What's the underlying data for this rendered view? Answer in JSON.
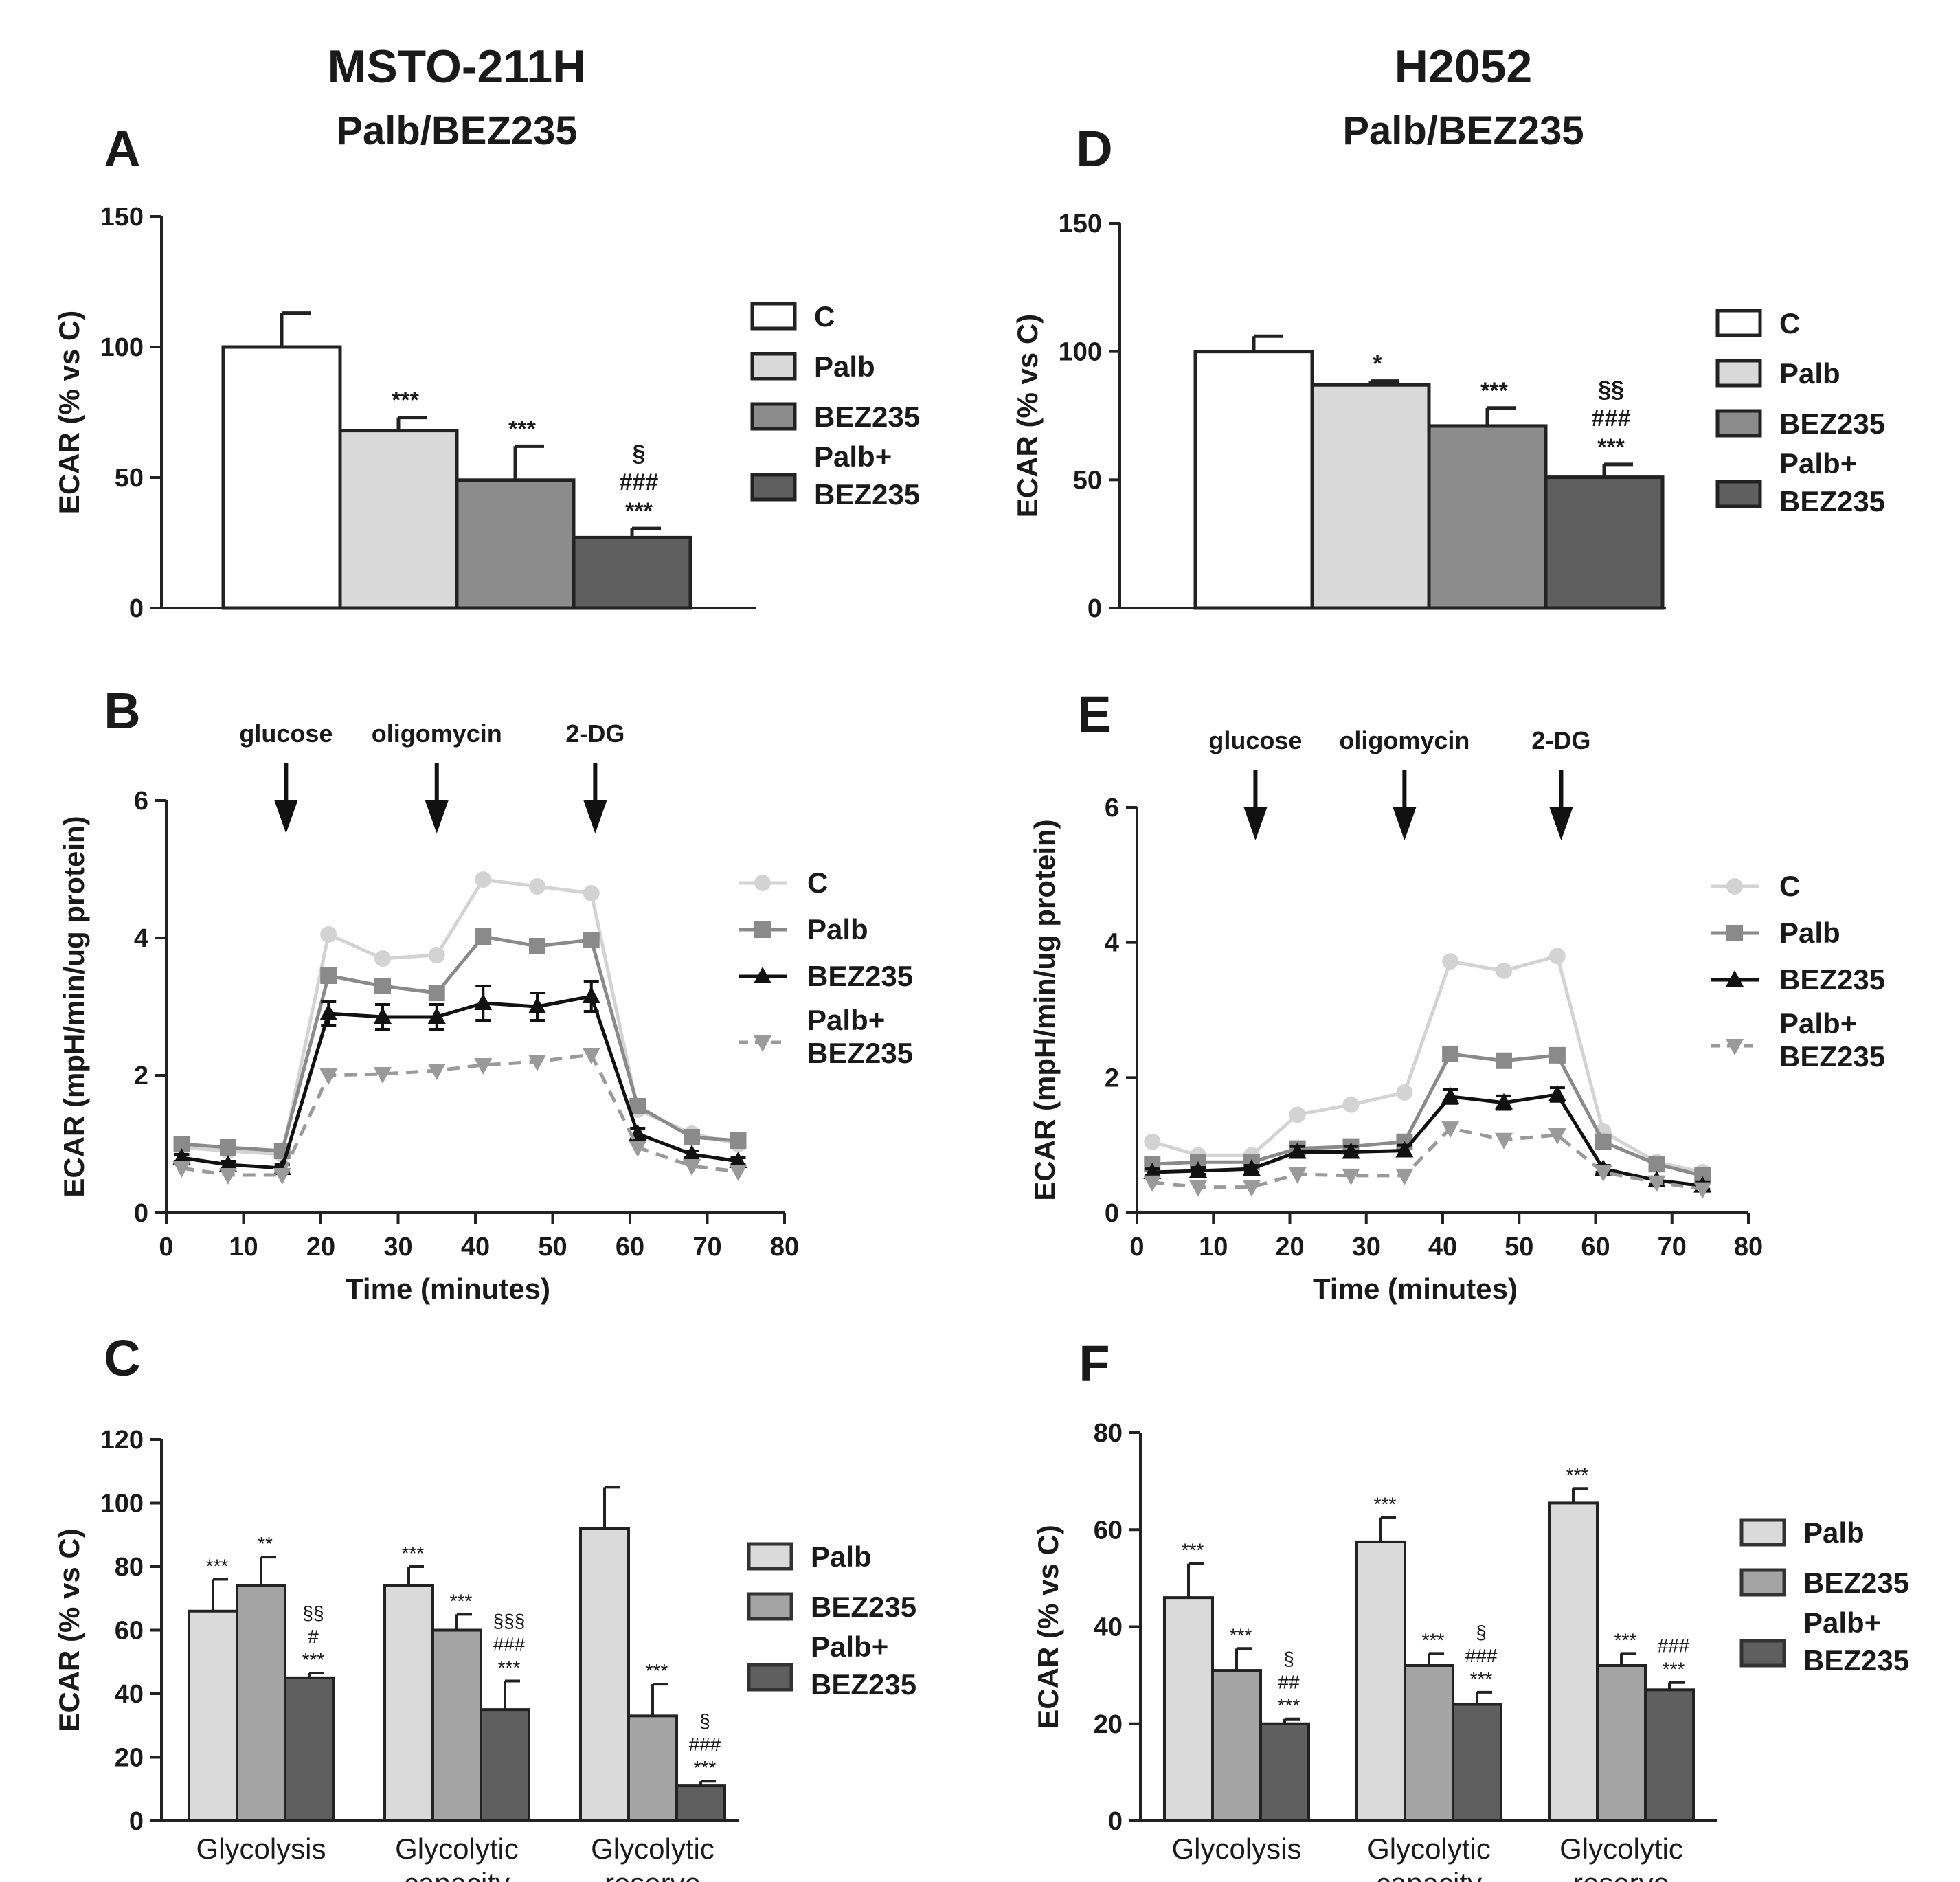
{
  "figure": {
    "left_column": {
      "title": "MSTO-211H",
      "subtitle": "Palb/BEZ235"
    },
    "right_column": {
      "title": "H2052",
      "subtitle": "Palb/BEZ235"
    }
  },
  "colors": {
    "C": "#ffffff",
    "Palb": "#d9d9d9",
    "BEZ235": "#8c8c8c",
    "Palb+BEZ235": "#5f5f5f",
    "line_C": "#d3d3d3",
    "line_Palb": "#8a8a8a",
    "line_BEZ235": "#111111",
    "line_PalbBEZ235": "#9a9a9a",
    "groupbar_Palb": "#dadada",
    "groupbar_BEZ235": "#a4a4a4",
    "groupbar_PalbBEZ235": "#5f5f5f"
  },
  "chart_data": [
    {
      "id": "A",
      "type": "bar",
      "categories": [
        "C",
        "Palb",
        "BEZ235",
        "Palb+BEZ235"
      ],
      "values": [
        100,
        68,
        49,
        27
      ],
      "errors": [
        13,
        5,
        13,
        3.5
      ],
      "significance": [
        [],
        [
          "***"
        ],
        [
          "***"
        ],
        [
          "§",
          "###",
          "***"
        ]
      ],
      "ylabel": "ECAR (% vs C)",
      "ylim": [
        0,
        150
      ],
      "yticks": [
        0,
        50,
        100,
        150
      ],
      "legend": [
        "C",
        "Palb",
        "BEZ235",
        "Palb+",
        "BEZ235"
      ]
    },
    {
      "id": "B",
      "type": "line",
      "x": [
        2,
        8,
        15,
        21,
        28,
        35,
        41,
        48,
        55,
        61,
        68,
        74
      ],
      "series": [
        {
          "name": "C",
          "values": [
            0.95,
            0.9,
            0.85,
            4.05,
            3.7,
            3.75,
            4.85,
            4.75,
            4.65,
            1.5,
            1.15,
            1.0
          ]
        },
        {
          "name": "Palb",
          "values": [
            1.0,
            0.95,
            0.9,
            3.45,
            3.3,
            3.2,
            4.02,
            3.88,
            3.97,
            1.55,
            1.1,
            1.05
          ]
        },
        {
          "name": "BEZ235",
          "values": [
            0.8,
            0.7,
            0.65,
            2.9,
            2.85,
            2.85,
            3.05,
            3.0,
            3.15,
            1.15,
            0.85,
            0.75
          ]
        },
        {
          "name": "Palb+BEZ235",
          "values": [
            0.65,
            0.55,
            0.55,
            2.0,
            2.02,
            2.07,
            2.15,
            2.2,
            2.3,
            0.95,
            0.68,
            0.6
          ]
        }
      ],
      "errors_BEZ235": [
        0.05,
        0.05,
        0.05,
        0.17,
        0.18,
        0.18,
        0.25,
        0.2,
        0.22,
        0.08,
        0.05,
        0.05
      ],
      "injections": [
        {
          "label": "glucose",
          "x": 15.5
        },
        {
          "label": "oligomycin",
          "x": 35
        },
        {
          "label": "2-DG",
          "x": 55.5
        }
      ],
      "xlabel": "Time (minutes)",
      "ylabel": "ECAR (mpH/min/ug protein)",
      "xlim": [
        0,
        80
      ],
      "ylim": [
        0,
        6
      ],
      "xticks": [
        0,
        10,
        20,
        30,
        40,
        50,
        60,
        70,
        80
      ],
      "yticks": [
        0,
        2,
        4,
        6
      ],
      "legend": [
        "C",
        "Palb",
        "BEZ235",
        "Palb+",
        "BEZ235"
      ]
    },
    {
      "id": "C",
      "type": "bar",
      "groups": [
        "Glycolysis",
        "Glycolytic",
        "Glycolytic"
      ],
      "groups_line2": [
        "",
        "capacity",
        "reserve"
      ],
      "series": [
        {
          "name": "Palb",
          "values": [
            66,
            74,
            92
          ],
          "errors": [
            10,
            6,
            13
          ]
        },
        {
          "name": "BEZ235",
          "values": [
            74,
            60,
            33
          ],
          "errors": [
            9,
            5,
            10
          ]
        },
        {
          "name": "Palb+BEZ235",
          "values": [
            45,
            35,
            11
          ],
          "errors": [
            1.5,
            9,
            1.5
          ]
        }
      ],
      "significance": [
        [
          [
            "***"
          ],
          [
            "**"
          ],
          [
            "§§",
            "#",
            "***"
          ]
        ],
        [
          [
            "***"
          ],
          [
            "***"
          ],
          [
            "§§§",
            "###",
            "***"
          ]
        ],
        [
          [],
          [
            "***"
          ],
          [
            "§",
            "###",
            "***"
          ]
        ]
      ],
      "ylabel": "ECAR (% vs C)",
      "ylim": [
        0,
        120
      ],
      "yticks": [
        0,
        20,
        40,
        60,
        80,
        100,
        120
      ],
      "legend": [
        "Palb",
        "BEZ235",
        "Palb+",
        "BEZ235"
      ]
    },
    {
      "id": "D",
      "type": "bar",
      "categories": [
        "C",
        "Palb",
        "BEZ235",
        "Palb+BEZ235"
      ],
      "values": [
        100,
        87,
        71,
        51
      ],
      "errors": [
        6,
        1.5,
        7,
        5
      ],
      "significance": [
        [],
        [
          "*"
        ],
        [
          "***"
        ],
        [
          "§§",
          "###",
          "***"
        ]
      ],
      "ylabel": "ECAR (% vs C)",
      "ylim": [
        0,
        150
      ],
      "yticks": [
        0,
        50,
        100,
        150
      ],
      "legend": [
        "C",
        "Palb",
        "BEZ235",
        "Palb+",
        "BEZ235"
      ]
    },
    {
      "id": "E",
      "type": "line",
      "x": [
        2,
        8,
        15,
        21,
        28,
        35,
        41,
        48,
        55,
        61,
        68,
        74
      ],
      "series": [
        {
          "name": "C",
          "values": [
            1.05,
            0.85,
            0.85,
            1.45,
            1.6,
            1.78,
            3.72,
            3.58,
            3.8,
            1.2,
            0.75,
            0.6
          ]
        },
        {
          "name": "Palb",
          "values": [
            0.72,
            0.75,
            0.75,
            0.95,
            0.98,
            1.05,
            2.35,
            2.25,
            2.33,
            1.05,
            0.72,
            0.55
          ]
        },
        {
          "name": "BEZ235",
          "values": [
            0.6,
            0.62,
            0.65,
            0.9,
            0.9,
            0.92,
            1.72,
            1.63,
            1.75,
            0.65,
            0.48,
            0.4
          ]
        },
        {
          "name": "Palb+BEZ235",
          "values": [
            0.45,
            0.38,
            0.38,
            0.57,
            0.55,
            0.55,
            1.25,
            1.08,
            1.15,
            0.6,
            0.45,
            0.35
          ]
        }
      ],
      "errors_BEZ235": [
        0.05,
        0.05,
        0.05,
        0.08,
        0.08,
        0.08,
        0.1,
        0.1,
        0.1,
        0.05,
        0.05,
        0.05
      ],
      "injections": [
        {
          "label": "glucose",
          "x": 15.5
        },
        {
          "label": "oligomycin",
          "x": 35
        },
        {
          "label": "2-DG",
          "x": 55.5
        }
      ],
      "xlabel": "Time (minutes)",
      "ylabel": "ECAR (mpH/min/ug protein)",
      "xlim": [
        0,
        80
      ],
      "ylim": [
        0,
        6
      ],
      "xticks": [
        0,
        10,
        20,
        30,
        40,
        50,
        60,
        70,
        80
      ],
      "yticks": [
        0,
        2,
        4,
        6
      ],
      "legend": [
        "C",
        "Palb",
        "BEZ235",
        "Palb+",
        "BEZ235"
      ]
    },
    {
      "id": "F",
      "type": "bar",
      "groups": [
        "Glycolysis",
        "Glycolytic",
        "Glycolytic"
      ],
      "groups_line2": [
        "",
        "capacity",
        "reserve"
      ],
      "series": [
        {
          "name": "Palb",
          "values": [
            46,
            57.5,
            65.5
          ],
          "errors": [
            7,
            5,
            3
          ]
        },
        {
          "name": "BEZ235",
          "values": [
            31,
            32,
            32
          ],
          "errors": [
            4.5,
            2.5,
            2.5
          ]
        },
        {
          "name": "Palb+BEZ235",
          "values": [
            20,
            24,
            27
          ],
          "errors": [
            1,
            2.5,
            1.5
          ]
        }
      ],
      "significance": [
        [
          [
            "***"
          ],
          [
            "***"
          ],
          [
            "§",
            "##",
            "***"
          ]
        ],
        [
          [
            "***"
          ],
          [
            "***"
          ],
          [
            "§",
            "###",
            "***"
          ]
        ],
        [
          [
            "***"
          ],
          [
            "***"
          ],
          [
            "###",
            "***"
          ]
        ]
      ],
      "ylabel": "ECAR (% vs C)",
      "ylim": [
        0,
        80
      ],
      "yticks": [
        0,
        20,
        40,
        60,
        80
      ],
      "legend": [
        "Palb",
        "BEZ235",
        "Palb+",
        "BEZ235"
      ]
    }
  ]
}
